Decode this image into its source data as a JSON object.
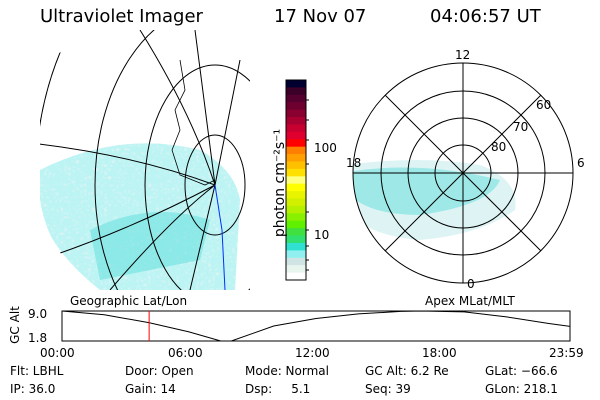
{
  "header": {
    "instrument": "Ultraviolet Imager",
    "date": "17 Nov 07",
    "time": "04:06:57 UT"
  },
  "colorbar": {
    "label": "photon cm⁻²s⁻¹",
    "ticks": [
      "100",
      "10"
    ],
    "colors": [
      "#000030",
      "#3a0028",
      "#560030",
      "#6e0030",
      "#8a0030",
      "#a80030",
      "#c80030",
      "#e00030",
      "#ff0000",
      "#ff8000",
      "#ffa000",
      "#ffc000",
      "#ffe000",
      "#ffff80",
      "#ffff00",
      "#e8f400",
      "#d0f000",
      "#b4f000",
      "#88f000",
      "#60f000",
      "#40e040",
      "#30e070",
      "#30e0d0",
      "#90f0f0",
      "#d0e4e4",
      "#e8f4ee",
      "#ffffff"
    ]
  },
  "polar": {
    "lat_labels": [
      "60",
      "70",
      "80"
    ],
    "mlt_labels": {
      "top": "12",
      "left": "18",
      "right": "6",
      "bottom": "0"
    }
  },
  "left_panel_label": "Geographic Lat/Lon",
  "right_panel_label": "Apex MLat/MLT",
  "altitude_plot": {
    "ylabel": "GC Alt",
    "yticks": [
      "9.0",
      "1.8"
    ],
    "ylim": [
      1.8,
      9.0
    ],
    "xticks": [
      "00:00",
      "06:00",
      "12:00",
      "18:00",
      "23:59"
    ],
    "current_time_hours": 4.116,
    "trace": [
      [
        0,
        9.0
      ],
      [
        2,
        8.1
      ],
      [
        4.1,
        6.2
      ],
      [
        6,
        4.0
      ],
      [
        7.5,
        1.8
      ],
      [
        8,
        1.8
      ],
      [
        10,
        5.4
      ],
      [
        12,
        7.2
      ],
      [
        14,
        8.3
      ],
      [
        16,
        8.9
      ],
      [
        17,
        9.0
      ],
      [
        19,
        8.8
      ],
      [
        21,
        7.6
      ],
      [
        23,
        6.0
      ],
      [
        24,
        5.3
      ]
    ]
  },
  "status": {
    "row1": [
      "Flt: LBHL",
      "Door: Open",
      "Mode: Normal",
      "GC Alt: 6.2 Re",
      "GLat: −66.6"
    ],
    "row2": [
      "IP: 36.0",
      "Gain: 14",
      "Dsp:     5.1",
      "Seq: 39",
      "GLon: 218.1"
    ]
  },
  "accent": {
    "trace": "#000000",
    "marker": "#ff0000",
    "aurora": "#7fe8e8"
  }
}
